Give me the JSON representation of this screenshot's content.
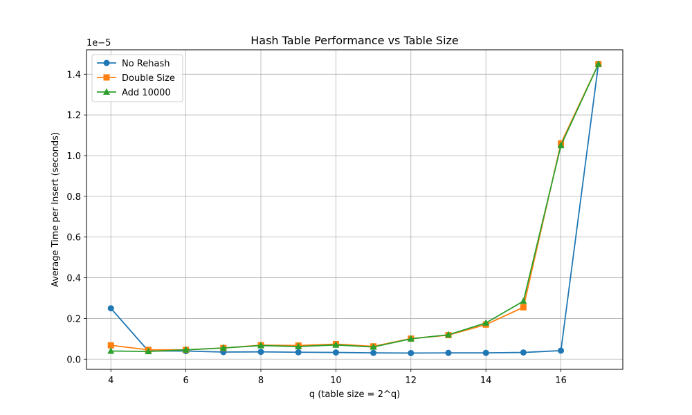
{
  "chart_data": {
    "type": "line",
    "title": "Hash Table Performance vs Table Size",
    "xlabel": "q (table size = 2^q)",
    "ylabel": "Average Time per Insert (seconds)",
    "y_offset_label": "1e−5",
    "x": [
      4,
      5,
      6,
      7,
      8,
      9,
      10,
      11,
      12,
      13,
      14,
      15,
      16,
      17
    ],
    "xlim": [
      3.35,
      17.65
    ],
    "ylim": [
      -0.05,
      1.52
    ],
    "x_ticks": [
      4,
      6,
      8,
      10,
      12,
      14,
      16
    ],
    "x_tick_labels": [
      "4",
      "6",
      "8",
      "10",
      "12",
      "14",
      "16"
    ],
    "y_ticks": [
      0.0,
      0.2,
      0.4,
      0.6,
      0.8,
      1.0,
      1.2,
      1.4
    ],
    "y_tick_labels": [
      "0.0",
      "0.2",
      "0.4",
      "0.6",
      "0.8",
      "1.0",
      "1.2",
      "1.4"
    ],
    "grid": true,
    "legend_position": "top-left",
    "series": [
      {
        "name": "No Rehash",
        "color": "#1f77b4",
        "marker": "circle",
        "values": [
          0.25,
          0.04,
          0.04,
          0.035,
          0.036,
          0.034,
          0.033,
          0.031,
          0.03,
          0.031,
          0.031,
          0.033,
          0.042,
          1.45
        ]
      },
      {
        "name": "Double Size",
        "color": "#ff7f0e",
        "marker": "square",
        "values": [
          0.068,
          0.046,
          0.046,
          0.055,
          0.069,
          0.067,
          0.074,
          0.063,
          0.101,
          0.118,
          0.17,
          0.255,
          1.06,
          1.45
        ]
      },
      {
        "name": "Add 10000",
        "color": "#2ca02c",
        "marker": "triangle",
        "values": [
          0.04,
          0.038,
          0.046,
          0.055,
          0.067,
          0.062,
          0.07,
          0.06,
          0.1,
          0.12,
          0.178,
          0.285,
          1.05,
          1.45
        ]
      }
    ]
  }
}
